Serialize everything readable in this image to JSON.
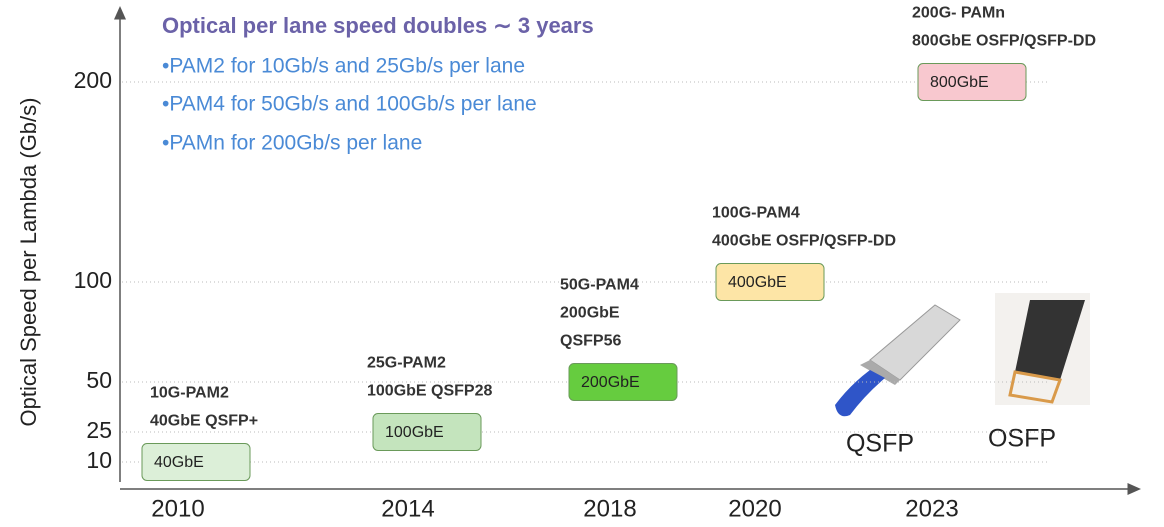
{
  "chart_data": {
    "type": "timeline",
    "title": "Optical per lane speed doubles ∼ 3 years",
    "notes": [
      "•PAM2 for 10Gb/s and 25Gb/s per lane",
      "•PAM4 for 50Gb/s and 100Gb/s per lane",
      "•PAMn for 200Gb/s per lane"
    ],
    "y_label": "Optical Speed per Lambda (Gb/s)",
    "categories": [
      "2010",
      "2014",
      "2018",
      "2020",
      "2023"
    ],
    "values": [
      10,
      25,
      50,
      100,
      200
    ],
    "boxes": [
      "40GbE",
      "100GbE",
      "200GbE",
      "400GbE",
      "800GbE"
    ],
    "annotations": [
      [
        "10G-PAM2",
        "40GbE QSFP+"
      ],
      [
        "25G-PAM2",
        "100GbE QSFP28"
      ],
      [
        "50G-PAM4",
        "200GbE",
        "QSFP56"
      ],
      [
        "100G-PAM4",
        "400GbE OSFP/QSFP-DD"
      ],
      [
        "200G- PAMn",
        "800GbE OSFP/QSFP-DD"
      ]
    ],
    "colors": [
      "#dcefd8",
      "#c4e4bd",
      "#66cc3f",
      "#fde5a6",
      "#f8c8cf"
    ],
    "ylim": [
      0,
      235
    ],
    "yticks": [
      10,
      25,
      50,
      100,
      200
    ],
    "grid": true,
    "modules": [
      "QSFP",
      "OSFP"
    ]
  }
}
